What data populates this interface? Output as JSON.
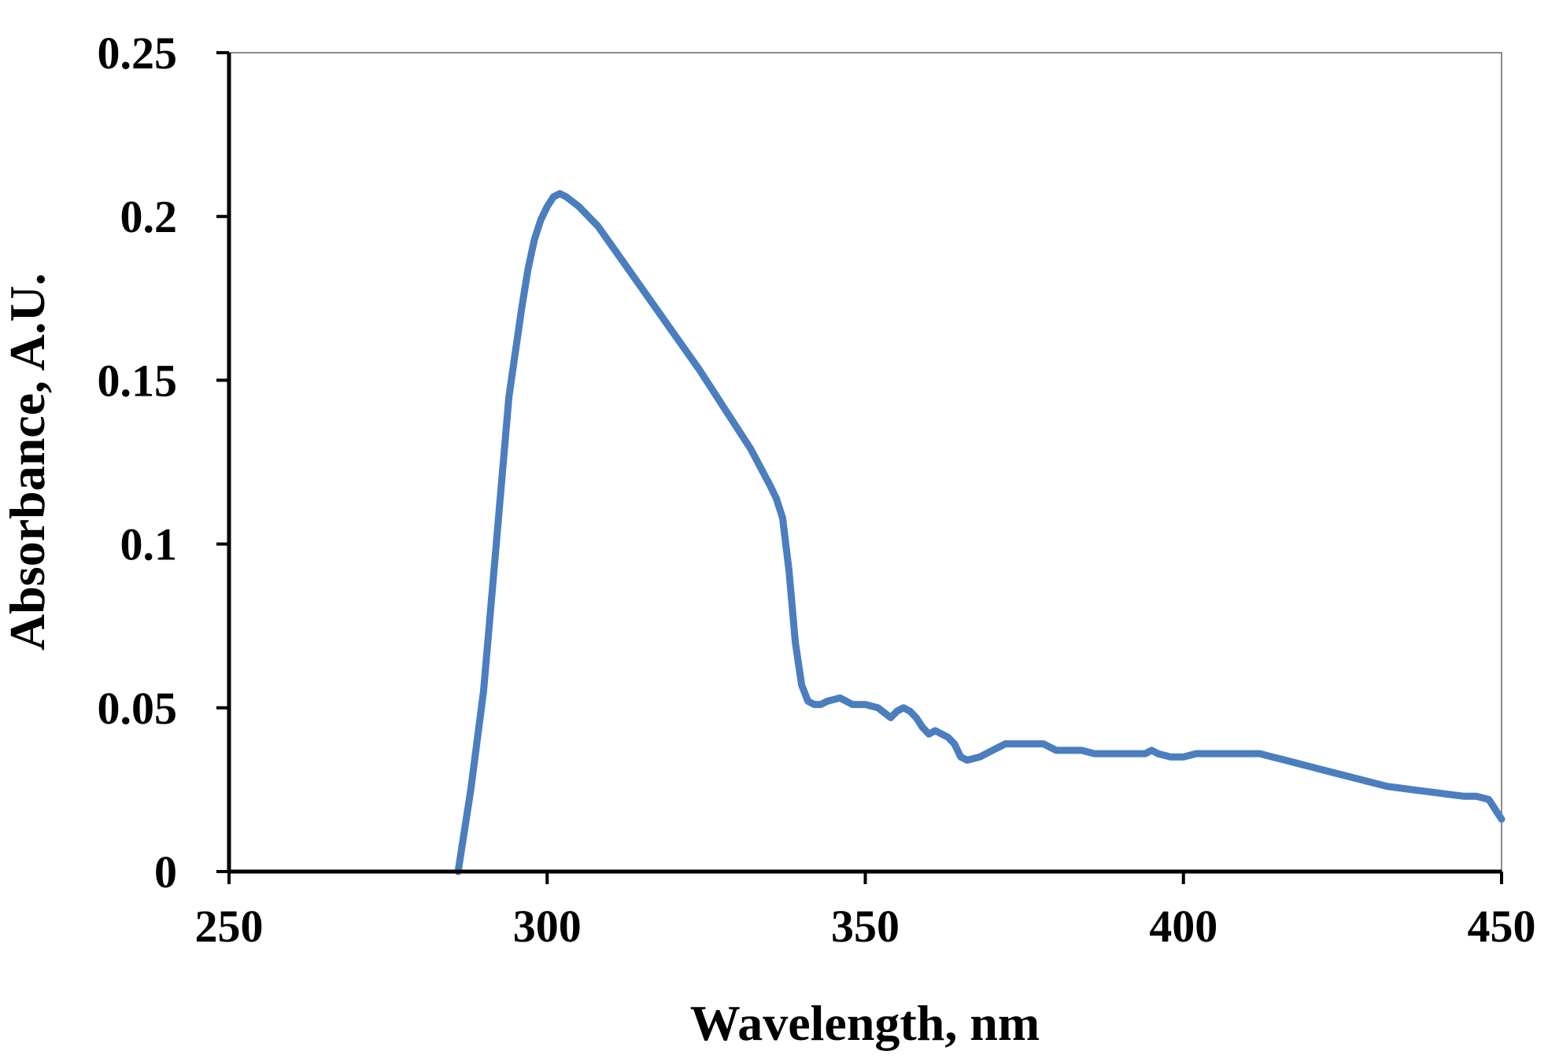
{
  "chart_data": {
    "type": "line",
    "title": "",
    "xlabel": "Wavelength, nm",
    "ylabel": "Absorbance, A.U.",
    "xlim": [
      250,
      450
    ],
    "ylim": [
      0,
      0.25
    ],
    "x_ticks": [
      250,
      300,
      350,
      400,
      450
    ],
    "x_tick_labels": [
      "250",
      "300",
      "350",
      "400",
      "450"
    ],
    "y_ticks": [
      0,
      0.05,
      0.1,
      0.15,
      0.2,
      0.25
    ],
    "y_tick_labels": [
      "0",
      "0.05",
      "0.1",
      "0.15",
      "0.2",
      "0.25"
    ],
    "grid": false,
    "legend": "none",
    "series": [
      {
        "color": "#4a7ebf",
        "x": [
          286,
          288,
          290,
          292,
          294,
          296,
          297,
          298,
          299,
          300,
          301,
          302,
          303,
          305,
          308,
          312,
          316,
          320,
          324,
          328,
          332,
          335,
          336,
          337,
          338,
          339,
          340,
          341,
          342,
          343,
          344,
          346,
          348,
          350,
          352,
          354,
          355,
          356,
          357,
          358,
          359,
          360,
          361,
          362,
          363,
          364,
          365,
          366,
          368,
          370,
          372,
          374,
          376,
          378,
          380,
          382,
          384,
          386,
          390,
          394,
          395,
          396,
          398,
          400,
          402,
          406,
          410,
          412,
          414,
          416,
          420,
          424,
          428,
          432,
          436,
          440,
          444,
          446,
          448,
          450
        ],
        "y": [
          0.0,
          0.025,
          0.055,
          0.1,
          0.145,
          0.172,
          0.184,
          0.193,
          0.199,
          0.203,
          0.206,
          0.207,
          0.206,
          0.203,
          0.197,
          0.186,
          0.175,
          0.164,
          0.153,
          0.141,
          0.129,
          0.118,
          0.114,
          0.108,
          0.092,
          0.07,
          0.057,
          0.052,
          0.051,
          0.051,
          0.052,
          0.053,
          0.051,
          0.051,
          0.05,
          0.047,
          0.049,
          0.05,
          0.049,
          0.047,
          0.044,
          0.042,
          0.043,
          0.042,
          0.041,
          0.039,
          0.035,
          0.034,
          0.035,
          0.037,
          0.039,
          0.039,
          0.039,
          0.039,
          0.037,
          0.037,
          0.037,
          0.036,
          0.036,
          0.036,
          0.037,
          0.036,
          0.035,
          0.035,
          0.036,
          0.036,
          0.036,
          0.036,
          0.035,
          0.034,
          0.032,
          0.03,
          0.028,
          0.026,
          0.025,
          0.024,
          0.023,
          0.023,
          0.022,
          0.016
        ]
      }
    ]
  }
}
